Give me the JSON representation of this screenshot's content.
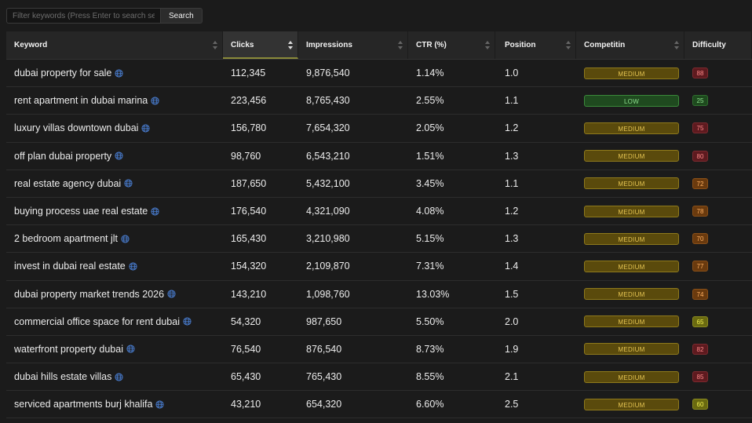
{
  "search": {
    "placeholder": "Filter keywords (Press Enter to search serv...",
    "button_label": "Search"
  },
  "columns": {
    "keyword": "Keyword",
    "clicks": "Clicks",
    "impressions": "Impressions",
    "ctr": "CTR (%)",
    "position": "Position",
    "competition": "Competitin",
    "difficulty": "Difficulty"
  },
  "sorted_column": "clicks",
  "colors": {
    "medium": "#e6c552",
    "low": "#8fe08f",
    "globe": "#4a7fd4"
  },
  "rows": [
    {
      "keyword": "dubai property for sale",
      "clicks": "112,345",
      "impressions": "9,876,540",
      "ctr": "1.14%",
      "position": "1.0",
      "competition": "MEDIUM",
      "difficulty": "88",
      "diff_level": "red"
    },
    {
      "keyword": "rent apartment in dubai marina",
      "clicks": "223,456",
      "impressions": "8,765,430",
      "ctr": "2.55%",
      "position": "1.1",
      "competition": "LOW",
      "difficulty": "25",
      "diff_level": "green"
    },
    {
      "keyword": "luxury villas downtown dubai",
      "clicks": "156,780",
      "impressions": "7,654,320",
      "ctr": "2.05%",
      "position": "1.2",
      "competition": "MEDIUM",
      "difficulty": "75",
      "diff_level": "red"
    },
    {
      "keyword": "off plan dubai property",
      "clicks": "98,760",
      "impressions": "6,543,210",
      "ctr": "1.51%",
      "position": "1.3",
      "competition": "MEDIUM",
      "difficulty": "80",
      "diff_level": "red"
    },
    {
      "keyword": "real estate agency dubai",
      "clicks": "187,650",
      "impressions": "5,432,100",
      "ctr": "3.45%",
      "position": "1.1",
      "competition": "MEDIUM",
      "difficulty": "72",
      "diff_level": "orange"
    },
    {
      "keyword": "buying process uae real estate",
      "clicks": "176,540",
      "impressions": "4,321,090",
      "ctr": "4.08%",
      "position": "1.2",
      "competition": "MEDIUM",
      "difficulty": "78",
      "diff_level": "orange"
    },
    {
      "keyword": "2 bedroom apartment jlt",
      "clicks": "165,430",
      "impressions": "3,210,980",
      "ctr": "5.15%",
      "position": "1.3",
      "competition": "MEDIUM",
      "difficulty": "70",
      "diff_level": "orange"
    },
    {
      "keyword": "invest in dubai real estate",
      "clicks": "154,320",
      "impressions": "2,109,870",
      "ctr": "7.31%",
      "position": "1.4",
      "competition": "MEDIUM",
      "difficulty": "77",
      "diff_level": "orange"
    },
    {
      "keyword": "dubai property market trends 2026",
      "clicks": "143,210",
      "impressions": "1,098,760",
      "ctr": "13.03%",
      "position": "1.5",
      "competition": "MEDIUM",
      "difficulty": "74",
      "diff_level": "orange"
    },
    {
      "keyword": "commercial office space for rent dubai",
      "clicks": "54,320",
      "impressions": "987,650",
      "ctr": "5.50%",
      "position": "2.0",
      "competition": "MEDIUM",
      "difficulty": "65",
      "diff_level": "yellow"
    },
    {
      "keyword": "waterfront property dubai",
      "clicks": "76,540",
      "impressions": "876,540",
      "ctr": "8.73%",
      "position": "1.9",
      "competition": "MEDIUM",
      "difficulty": "82",
      "diff_level": "red"
    },
    {
      "keyword": "dubai hills estate villas",
      "clicks": "65,430",
      "impressions": "765,430",
      "ctr": "8.55%",
      "position": "2.1",
      "competition": "MEDIUM",
      "difficulty": "85",
      "diff_level": "red"
    },
    {
      "keyword": "serviced apartments burj khalifa",
      "clicks": "43,210",
      "impressions": "654,320",
      "ctr": "6.60%",
      "position": "2.5",
      "competition": "MEDIUM",
      "difficulty": "60",
      "diff_level": "yellow"
    }
  ]
}
